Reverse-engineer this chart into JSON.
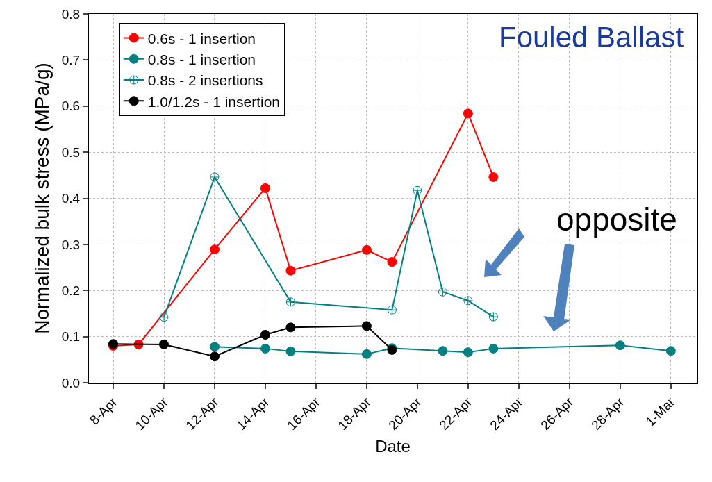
{
  "chart_data": {
    "type": "line",
    "xlabel": "Date",
    "ylabel": "Normalized bulk stress (MPa/g)",
    "categories": [
      "8-Apr",
      null,
      "10-Apr",
      null,
      "12-Apr",
      null,
      "14-Apr",
      null,
      "16-Apr",
      null,
      "18-Apr",
      null,
      "20-Apr",
      null,
      "22-Apr",
      null,
      "24-Apr",
      null,
      "26-Apr",
      null,
      "28-Apr",
      null,
      "1-Mar"
    ],
    "series": [
      {
        "name": "0.6s - 1 insertion",
        "color": "#ff0000",
        "marker": "circle",
        "values": [
          0.08,
          0.083,
          null,
          null,
          0.289,
          null,
          0.422,
          0.243,
          null,
          null,
          0.288,
          0.262,
          null,
          null,
          0.584,
          0.446,
          null,
          null,
          null,
          null,
          null,
          null,
          null
        ]
      },
      {
        "name": "0.8s - 1 insertion",
        "color": "#008080",
        "marker": "circle",
        "values": [
          null,
          null,
          null,
          null,
          0.078,
          null,
          0.074,
          0.068,
          null,
          null,
          0.062,
          0.075,
          null,
          0.069,
          0.066,
          0.074,
          null,
          null,
          null,
          null,
          0.081,
          null,
          0.069
        ]
      },
      {
        "name": "0.8s - 2 insertions",
        "color": "#008080",
        "marker": "cross",
        "values": [
          null,
          null,
          0.142,
          null,
          0.446,
          null,
          null,
          0.175,
          null,
          null,
          null,
          0.158,
          0.417,
          0.197,
          0.178,
          0.143,
          null,
          null,
          null,
          null,
          null,
          null,
          null
        ]
      },
      {
        "name": "1.0/1.2s - 1 insertion",
        "color": "#000000",
        "marker": "circle",
        "values": [
          0.084,
          null,
          0.083,
          null,
          0.057,
          null,
          0.104,
          0.12,
          null,
          null,
          0.123,
          0.071,
          null,
          null,
          null,
          null,
          null,
          null,
          null,
          null,
          null,
          null,
          null
        ]
      }
    ],
    "ylim": [
      0,
      0.8
    ],
    "yticks": [
      {
        "value": 0,
        "label": "0.0"
      },
      {
        "value": 0.1,
        "label": "0.1"
      },
      {
        "value": 0.2,
        "label": "0.2"
      },
      {
        "value": 0.3,
        "label": "0.3"
      },
      {
        "value": 0.4,
        "label": "0.4"
      },
      {
        "value": 0.5,
        "label": "0.5"
      },
      {
        "value": 0.6,
        "label": "0.6"
      },
      {
        "value": 0.7,
        "label": "0.7"
      },
      {
        "value": 0.8,
        "label": "0.8"
      }
    ],
    "grid": true,
    "legend": "top left",
    "line_style": "solid",
    "annotations": [
      "Fouled Ballast",
      "opposite"
    ]
  }
}
